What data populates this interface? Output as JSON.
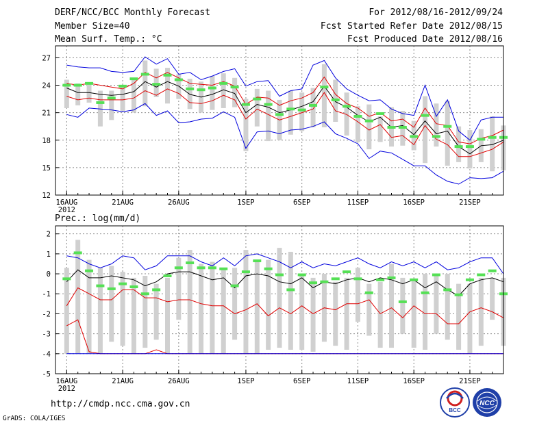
{
  "header": {
    "title": "DERF/NCC/BCC Monthly Forecast",
    "member_size": "Member Size=40",
    "variable": "Mean Surf. Temp.: °C",
    "fcst_range": "For 2012/08/16-2012/09/24",
    "start_date": "Fcst Started Refer Date 2012/08/15",
    "produced_date": "Fcst Produced Date 2012/08/16"
  },
  "footer": {
    "url": "http://cmdp.ncc.cma.gov.cn",
    "credit": "GrADS: COLA/IGES",
    "logo_left_text": "BCC",
    "logo_right_text": "NCC"
  },
  "colors": {
    "box": "#d0d0d0",
    "median": "#55e055",
    "mean": "#000000",
    "spread": "#e00000",
    "extreme": "#0000dd",
    "grid": "#888888"
  },
  "chart_data": [
    {
      "type": "box",
      "title": "Mean Surf. Temp.: °C",
      "xlabel": "",
      "ylabel": "",
      "x_tick_labels": [
        "16AUG",
        "21AUG",
        "26AUG",
        "1SEP",
        "6SEP",
        "11SEP",
        "16SEP",
        "21SEP"
      ],
      "x_tick_days": [
        1,
        6,
        11,
        17,
        22,
        27,
        32,
        37
      ],
      "x_year_label": "2012",
      "x_range": [
        0,
        40
      ],
      "y_ticks": [
        12,
        15,
        18,
        21,
        24,
        27
      ],
      "ylim": [
        12,
        28.3
      ],
      "grid": true,
      "days": [
        1,
        2,
        3,
        4,
        5,
        6,
        7,
        8,
        9,
        10,
        11,
        12,
        13,
        14,
        15,
        16,
        17,
        18,
        19,
        20,
        21,
        22,
        23,
        24,
        25,
        26,
        27,
        28,
        29,
        30,
        31,
        32,
        33,
        34,
        35,
        36,
        37,
        38,
        39,
        40
      ],
      "box_low": [
        21.5,
        21.8,
        22.1,
        19.5,
        20.2,
        21.2,
        21.0,
        21.7,
        22.7,
        22.0,
        22.5,
        21.4,
        21.0,
        21.3,
        21.5,
        21.6,
        16.8,
        19.5,
        17.9,
        18.0,
        18.6,
        19.0,
        19.4,
        19.4,
        20.0,
        18.5,
        17.8,
        17.0,
        17.8,
        17.3,
        17.4,
        16.9,
        15.5,
        17.3,
        15.2,
        15.6,
        14.9,
        15.6,
        14.6,
        14.7
      ],
      "box_high": [
        24.6,
        24.2,
        24.2,
        23.4,
        23.4,
        23.9,
        24.8,
        26.7,
        25.8,
        25.9,
        25.2,
        24.7,
        24.4,
        25.0,
        25.3,
        24.8,
        22.5,
        23.6,
        23.4,
        22.4,
        23.4,
        23.2,
        23.7,
        26.3,
        24.6,
        23.2,
        21.7,
        21.9,
        20.6,
        21.6,
        21.2,
        20.1,
        22.8,
        22.0,
        22.3,
        19.5,
        19.1,
        19.2,
        20.6,
        19.6
      ],
      "median": [
        24.0,
        24.0,
        24.2,
        22.1,
        22.6,
        23.9,
        24.7,
        25.2,
        24.1,
        25.1,
        24.6,
        23.6,
        23.5,
        23.7,
        24.2,
        23.8,
        21.9,
        22.5,
        21.9,
        20.8,
        21.4,
        21.3,
        21.8,
        23.8,
        22.4,
        21.7,
        20.6,
        20.1,
        20.9,
        19.4,
        19.4,
        18.4,
        20.7,
        18.4,
        19.5,
        17.3,
        17.3,
        18.1,
        18.3,
        18.3
      ],
      "series": [
        {
          "name": "max",
          "color": "extreme",
          "values": [
            26.2,
            26.0,
            25.9,
            25.9,
            25.5,
            25.4,
            25.5,
            27.1,
            26.3,
            26.9,
            25.2,
            25.4,
            24.6,
            25.0,
            25.5,
            25.8,
            23.9,
            24.4,
            24.5,
            22.8,
            23.4,
            23.6,
            26.2,
            26.7,
            24.8,
            23.6,
            22.9,
            22.3,
            22.4,
            21.4,
            20.9,
            20.7,
            24.0,
            20.6,
            22.4,
            19.0,
            18.0,
            20.2,
            20.5,
            20.5
          ]
        },
        {
          "name": "mean_plus_sd",
          "color": "spread",
          "values": [
            24.2,
            24.0,
            24.2,
            24.0,
            23.8,
            23.6,
            24.2,
            25.4,
            24.8,
            25.4,
            24.8,
            24.2,
            24.1,
            24.0,
            24.4,
            23.9,
            21.9,
            22.7,
            22.6,
            21.8,
            22.3,
            22.6,
            23.2,
            24.9,
            23.0,
            22.0,
            21.5,
            20.6,
            21.0,
            20.1,
            20.3,
            19.4,
            21.5,
            19.8,
            19.6,
            17.8,
            17.6,
            18.2,
            18.5,
            19.1
          ]
        },
        {
          "name": "mean",
          "color": "mean",
          "values": [
            23.7,
            23.2,
            23.2,
            23.0,
            22.9,
            23.0,
            23.3,
            24.4,
            23.8,
            24.4,
            23.9,
            23.0,
            22.7,
            23.0,
            23.5,
            23.1,
            21.0,
            21.9,
            21.6,
            21.0,
            21.3,
            21.7,
            22.2,
            23.9,
            22.2,
            21.6,
            20.7,
            20.0,
            20.5,
            19.4,
            19.6,
            18.6,
            20.1,
            18.7,
            19.0,
            17.3,
            16.5,
            17.4,
            17.5,
            18.0
          ]
        },
        {
          "name": "mean_minus_sd",
          "color": "spread",
          "values": [
            22.8,
            22.4,
            22.6,
            22.4,
            22.4,
            22.4,
            22.6,
            23.4,
            22.9,
            23.6,
            23.1,
            22.1,
            22.0,
            22.3,
            22.9,
            22.4,
            20.3,
            21.4,
            20.8,
            20.2,
            20.6,
            21.0,
            21.4,
            23.2,
            21.2,
            20.8,
            20.0,
            19.1,
            19.7,
            18.3,
            18.5,
            17.5,
            19.6,
            18.1,
            17.5,
            16.2,
            16.2,
            16.6,
            17.0,
            17.8
          ]
        },
        {
          "name": "min",
          "color": "extreme",
          "values": [
            20.8,
            20.5,
            21.5,
            21.4,
            21.3,
            21.1,
            21.3,
            22.0,
            20.7,
            21.2,
            19.9,
            20.0,
            20.3,
            20.4,
            21.1,
            20.5,
            17.1,
            18.9,
            19.0,
            18.7,
            19.1,
            19.2,
            19.5,
            20.0,
            18.7,
            18.2,
            17.6,
            16.0,
            16.8,
            16.6,
            15.9,
            15.2,
            15.2,
            14.2,
            13.5,
            13.2,
            13.9,
            13.8,
            13.9,
            14.6
          ]
        }
      ]
    },
    {
      "type": "box",
      "title": "Prec.: log(mm/d)",
      "xlabel": "",
      "ylabel": "",
      "x_tick_labels": [
        "16AUG",
        "21AUG",
        "26AUG",
        "1SEP",
        "6SEP",
        "11SEP",
        "16SEP",
        "21SEP"
      ],
      "x_tick_days": [
        1,
        6,
        11,
        17,
        22,
        27,
        32,
        37
      ],
      "x_year_label": "2012",
      "x_range": [
        0,
        40
      ],
      "y_ticks": [
        -5,
        -4,
        -3,
        -2,
        -1,
        0,
        1,
        2
      ],
      "ylim": [
        -5,
        2.4
      ],
      "grid": true,
      "days": [
        1,
        2,
        3,
        4,
        5,
        6,
        7,
        8,
        9,
        10,
        11,
        12,
        13,
        14,
        15,
        16,
        17,
        18,
        19,
        20,
        21,
        22,
        23,
        24,
        25,
        26,
        27,
        28,
        29,
        30,
        31,
        32,
        33,
        34,
        35,
        36,
        37,
        38,
        39,
        40
      ],
      "box_low": [
        -4,
        -4,
        -4,
        -4,
        -3.4,
        -3.6,
        -4,
        -3.7,
        -3.3,
        -4,
        -2.3,
        -4,
        -4,
        -4,
        -4,
        -3.3,
        -4,
        -4,
        -3.8,
        -3.7,
        -3.8,
        -3.8,
        -3.9,
        -3.4,
        -3.6,
        -3.8,
        -2.4,
        -3.1,
        -3.7,
        -3.7,
        -3.0,
        -3.7,
        -3.8,
        -3.0,
        -3.3,
        -3.8,
        -4,
        -3.6,
        -2.3,
        -3.6
      ],
      "box_high": [
        0.3,
        1.7,
        0.7,
        0.3,
        0.4,
        0.1,
        -0.2,
        -0.1,
        -0.5,
        -0.2,
        0.8,
        1.2,
        0.5,
        0.6,
        0.2,
        0.3,
        1.2,
        0.7,
        0.7,
        1.3,
        1.1,
        0.0,
        -0.2,
        0.0,
        -0.4,
        -0.2,
        0.3,
        -0.5,
        -0.4,
        0.5,
        -0.2,
        -0.3,
        0.0,
        0.0,
        0.0,
        -0.5,
        -0.5,
        -0.2,
        -0.2,
        -0.2
      ],
      "median": [
        -0.25,
        1.05,
        0.15,
        -0.6,
        -0.75,
        -0.5,
        -0.65,
        -1.0,
        -0.8,
        -0.1,
        0.3,
        0.55,
        0.3,
        0.3,
        0.25,
        -0.6,
        0.1,
        0.65,
        0.25,
        -0.05,
        -0.8,
        -0.05,
        -0.45,
        -0.4,
        -0.25,
        0.1,
        -0.25,
        -0.95,
        -0.3,
        -0.2,
        -1.4,
        -0.3,
        -0.95,
        -0.05,
        -0.8,
        -1.05,
        -0.3,
        -0.05,
        0.15,
        -1.0
      ],
      "series": [
        {
          "name": "max",
          "color": "extreme",
          "values": [
            0.9,
            0.8,
            0.5,
            0.3,
            0.5,
            0.9,
            0.8,
            0.2,
            0.4,
            0.9,
            0.9,
            0.9,
            0.6,
            0.4,
            0.8,
            0.4,
            0.9,
            1.0,
            0.8,
            0.6,
            0.3,
            0.6,
            0.3,
            0.5,
            0.4,
            0.6,
            0.8,
            0.5,
            0.3,
            0.6,
            0.4,
            0.6,
            0.3,
            0.6,
            0.2,
            0.3,
            0.6,
            0.8,
            0.8,
            0.0
          ]
        },
        {
          "name": "mean",
          "color": "mean",
          "values": [
            -0.4,
            0.2,
            -0.2,
            -0.2,
            -0.1,
            -0.2,
            -0.3,
            -0.6,
            -0.4,
            0.0,
            0.1,
            0.1,
            -0.1,
            -0.3,
            -0.2,
            -0.7,
            -0.1,
            0.0,
            -0.1,
            -0.4,
            -0.5,
            -0.2,
            -0.7,
            -0.4,
            -0.5,
            -0.3,
            -0.2,
            -0.4,
            -0.2,
            -0.3,
            -0.5,
            -0.3,
            -0.7,
            -0.4,
            -0.8,
            -1.1,
            -0.5,
            -0.3,
            -0.2,
            -0.4
          ]
        },
        {
          "name": "mean_minus_sd",
          "color": "spread",
          "values": [
            -1.6,
            -0.7,
            -1.0,
            -1.3,
            -1.3,
            -0.8,
            -0.8,
            -1.2,
            -1.2,
            -1.4,
            -1.3,
            -1.3,
            -1.5,
            -1.6,
            -1.6,
            -2.0,
            -1.8,
            -1.5,
            -2.1,
            -1.7,
            -2.0,
            -1.6,
            -2.0,
            -1.7,
            -1.8,
            -1.5,
            -1.5,
            -1.3,
            -2.0,
            -1.7,
            -2.2,
            -1.6,
            -2.0,
            -2.0,
            -2.5,
            -2.5,
            -1.9,
            -1.7,
            -1.9,
            -2.2
          ]
        },
        {
          "name": "min",
          "color": "spread",
          "values": [
            -2.6,
            -2.3,
            -3.9,
            -4.0,
            -4.0,
            -4.0,
            -4.0,
            -4.0,
            -3.8,
            -4.0,
            -4.0,
            -4.0,
            -4.0,
            -4.0,
            -4.0,
            -4.0,
            -4.0,
            -4.0,
            -4.0,
            -4.0,
            -4.0,
            -4.0,
            -4.0,
            -4.0,
            -4.0,
            -4.0,
            -4.0,
            -4.0,
            -4.0,
            -4.0,
            -4.0,
            -4.0,
            -4.0,
            -4.0,
            -4.0,
            -4.0,
            -4.0,
            -4.0,
            -4.0,
            -4.0
          ]
        },
        {
          "name": "floor",
          "color": "extreme",
          "values": [
            -4.0,
            -4.0,
            -4.0,
            -4.0,
            -4.0,
            -4.0,
            -4.0,
            -4.0,
            -4.0,
            -4.0,
            -4.0,
            -4.0,
            -4.0,
            -4.0,
            -4.0,
            -4.0,
            -4.0,
            -4.0,
            -4.0,
            -4.0,
            -4.0,
            -4.0,
            -4.0,
            -4.0,
            -4.0,
            -4.0,
            -4.0,
            -4.0,
            -4.0,
            -4.0,
            -4.0,
            -4.0,
            -4.0,
            -4.0,
            -4.0,
            -4.0,
            -4.0,
            -4.0,
            -4.0,
            -4.0
          ]
        }
      ]
    }
  ]
}
